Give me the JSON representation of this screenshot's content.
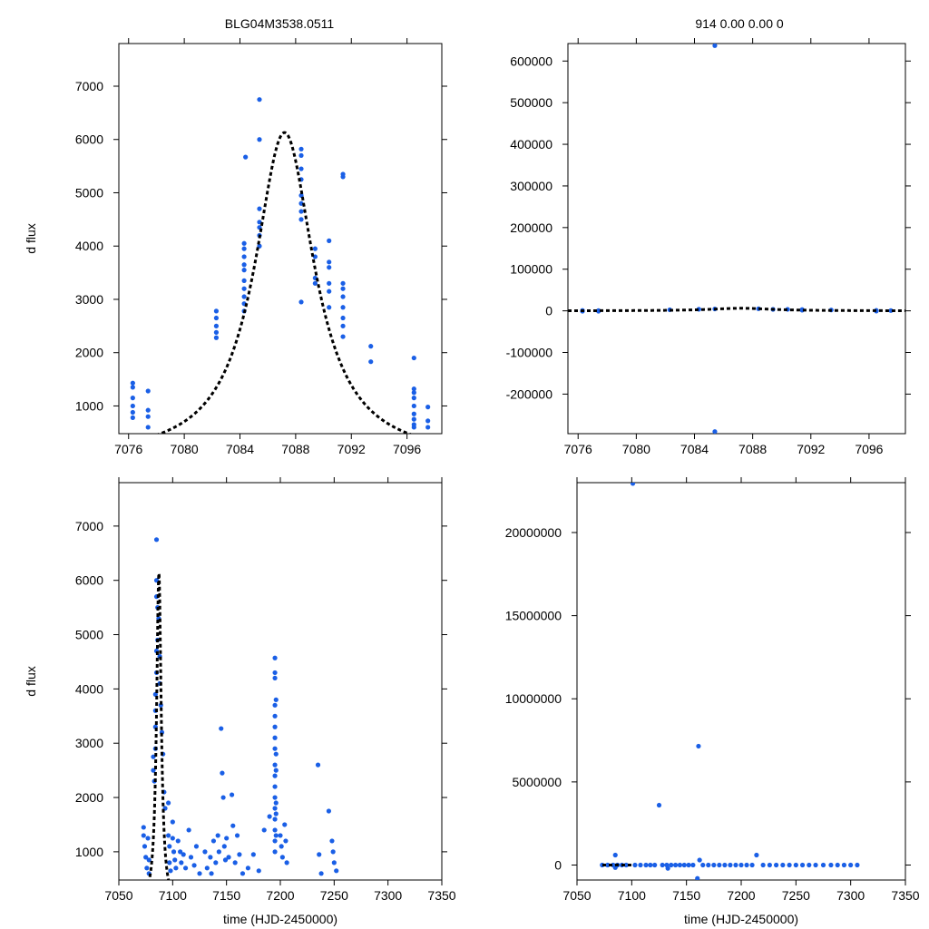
{
  "title_left": "BLG04M3538.0511",
  "title_right": "914  0.00  0.00  0",
  "colors": {
    "points": "#1a5fe6",
    "model": "#000000",
    "axis": "#000000"
  },
  "chart_data": [
    {
      "id": "top-left",
      "type": "scatter",
      "ylabel": "d flux",
      "xlabel": "",
      "xlim": [
        7075.3,
        7098.5
      ],
      "ylim": [
        480,
        7800
      ],
      "xticks": [
        7076,
        7080,
        7084,
        7088,
        7092,
        7096
      ],
      "yticks": [
        1000,
        2000,
        3000,
        4000,
        5000,
        6000,
        7000
      ],
      "points": [
        [
          7076.3,
          1430
        ],
        [
          7076.3,
          1350
        ],
        [
          7076.3,
          1150
        ],
        [
          7076.3,
          1000
        ],
        [
          7076.3,
          880
        ],
        [
          7076.3,
          780
        ],
        [
          7077.4,
          1280
        ],
        [
          7077.4,
          920
        ],
        [
          7077.4,
          800
        ],
        [
          7077.4,
          600
        ],
        [
          7082.3,
          2780
        ],
        [
          7082.3,
          2650
        ],
        [
          7082.3,
          2500
        ],
        [
          7082.3,
          2380
        ],
        [
          7082.3,
          2280
        ],
        [
          7084.3,
          4050
        ],
        [
          7084.3,
          3950
        ],
        [
          7084.3,
          3800
        ],
        [
          7084.3,
          3650
        ],
        [
          7084.3,
          3550
        ],
        [
          7084.3,
          3350
        ],
        [
          7084.3,
          3200
        ],
        [
          7084.3,
          3050
        ],
        [
          7084.3,
          2920
        ],
        [
          7084.3,
          2780
        ],
        [
          7084.4,
          5670
        ],
        [
          7085.4,
          6750
        ],
        [
          7085.4,
          6000
        ],
        [
          7085.4,
          4700
        ],
        [
          7085.4,
          4450
        ],
        [
          7085.4,
          4350
        ],
        [
          7085.4,
          4200
        ],
        [
          7085.4,
          4000
        ],
        [
          7088.4,
          5820
        ],
        [
          7088.4,
          5700
        ],
        [
          7088.4,
          5450
        ],
        [
          7088.4,
          5250
        ],
        [
          7088.4,
          4950
        ],
        [
          7088.4,
          4800
        ],
        [
          7088.4,
          4650
        ],
        [
          7088.4,
          4500
        ],
        [
          7088.4,
          2950
        ],
        [
          7089.4,
          3950
        ],
        [
          7089.4,
          3800
        ],
        [
          7089.4,
          3400
        ],
        [
          7089.4,
          3300
        ],
        [
          7090.4,
          4100
        ],
        [
          7090.4,
          3700
        ],
        [
          7090.4,
          3600
        ],
        [
          7090.4,
          3300
        ],
        [
          7090.4,
          3150
        ],
        [
          7090.4,
          2850
        ],
        [
          7091.4,
          5350
        ],
        [
          7091.4,
          5300
        ],
        [
          7091.4,
          3300
        ],
        [
          7091.4,
          3200
        ],
        [
          7091.4,
          3050
        ],
        [
          7091.4,
          2850
        ],
        [
          7091.4,
          2650
        ],
        [
          7091.4,
          2500
        ],
        [
          7091.4,
          2300
        ],
        [
          7093.4,
          2120
        ],
        [
          7093.4,
          1830
        ],
        [
          7096.5,
          1900
        ],
        [
          7096.5,
          1320
        ],
        [
          7096.5,
          1250
        ],
        [
          7096.5,
          1150
        ],
        [
          7096.5,
          1000
        ],
        [
          7096.5,
          850
        ],
        [
          7096.5,
          750
        ],
        [
          7096.5,
          650
        ],
        [
          7096.5,
          600
        ],
        [
          7097.5,
          980
        ],
        [
          7097.5,
          720
        ],
        [
          7097.5,
          600
        ]
      ],
      "model": {
        "t0": 7087.2,
        "peak": 6130,
        "base": 0,
        "width": 2.6
      }
    },
    {
      "id": "top-right",
      "type": "scatter",
      "ylabel": "",
      "xlabel": "",
      "xlim": [
        7075.3,
        7098.5
      ],
      "ylim": [
        -295000,
        642000
      ],
      "xticks": [
        7076,
        7080,
        7084,
        7088,
        7092,
        7096
      ],
      "yticks": [
        -200000,
        -100000,
        0,
        100000,
        200000,
        300000,
        400000,
        500000,
        600000
      ],
      "points": [
        [
          7076.3,
          800
        ],
        [
          7076.3,
          -1000
        ],
        [
          7077.4,
          500
        ],
        [
          7077.4,
          -800
        ],
        [
          7082.3,
          2500
        ],
        [
          7084.3,
          3800
        ],
        [
          7085.4,
          637000
        ],
        [
          7085.4,
          -290000
        ],
        [
          7085.4,
          4500
        ],
        [
          7088.4,
          5000
        ],
        [
          7089.4,
          3500
        ],
        [
          7090.4,
          3600
        ],
        [
          7091.4,
          3000
        ],
        [
          7091.4,
          1500
        ],
        [
          7093.4,
          2000
        ],
        [
          7096.5,
          1000
        ],
        [
          7096.5,
          -500
        ],
        [
          7097.5,
          700
        ]
      ],
      "model": {
        "t0": 7087.2,
        "peak": 6130,
        "base": 0,
        "width": 2.6
      }
    },
    {
      "id": "bottom-left",
      "type": "scatter",
      "ylabel": "d flux",
      "xlabel": "time (HJD-2450000)",
      "xlim": [
        7050,
        7350
      ],
      "ylim": [
        480,
        7800
      ],
      "xticks": [
        7050,
        7100,
        7150,
        7200,
        7250,
        7300,
        7350
      ],
      "yticks": [
        1000,
        2000,
        3000,
        4000,
        5000,
        6000,
        7000
      ],
      "points": [
        [
          7073,
          1450
        ],
        [
          7073,
          1300
        ],
        [
          7074,
          1100
        ],
        [
          7075,
          900
        ],
        [
          7076,
          700
        ],
        [
          7077,
          1250
        ],
        [
          7078,
          850
        ],
        [
          7078,
          600
        ],
        [
          7082,
          2750
        ],
        [
          7082,
          2500
        ],
        [
          7083,
          2300
        ],
        [
          7084,
          3900
        ],
        [
          7084,
          3600
        ],
        [
          7084,
          3300
        ],
        [
          7084,
          2900
        ],
        [
          7085,
          6750
        ],
        [
          7085,
          6000
        ],
        [
          7085,
          5700
        ],
        [
          7085,
          4700
        ],
        [
          7085,
          4300
        ],
        [
          7086,
          5500
        ],
        [
          7086,
          4900
        ],
        [
          7087,
          5300
        ],
        [
          7088,
          4600
        ],
        [
          7088,
          4100
        ],
        [
          7089,
          3700
        ],
        [
          7090,
          3200
        ],
        [
          7091,
          2800
        ],
        [
          7092,
          2100
        ],
        [
          7093,
          1800
        ],
        [
          7096,
          1900
        ],
        [
          7096,
          1300
        ],
        [
          7097,
          1100
        ],
        [
          7097,
          800
        ],
        [
          7098,
          650
        ],
        [
          7100,
          1550
        ],
        [
          7100,
          1250
        ],
        [
          7101,
          1000
        ],
        [
          7102,
          850
        ],
        [
          7103,
          700
        ],
        [
          7105,
          1200
        ],
        [
          7107,
          1000
        ],
        [
          7108,
          800
        ],
        [
          7110,
          950
        ],
        [
          7112,
          700
        ],
        [
          7115,
          1400
        ],
        [
          7117,
          900
        ],
        [
          7120,
          750
        ],
        [
          7122,
          1100
        ],
        [
          7125,
          600
        ],
        [
          7130,
          1000
        ],
        [
          7132,
          700
        ],
        [
          7135,
          900
        ],
        [
          7136,
          600
        ],
        [
          7138,
          1200
        ],
        [
          7140,
          800
        ],
        [
          7142,
          1300
        ],
        [
          7143,
          1000
        ],
        [
          7145,
          3270
        ],
        [
          7146,
          2450
        ],
        [
          7147,
          2000
        ],
        [
          7148,
          1100
        ],
        [
          7149,
          850
        ],
        [
          7150,
          1250
        ],
        [
          7152,
          900
        ],
        [
          7155,
          2050
        ],
        [
          7156,
          1480
        ],
        [
          7158,
          800
        ],
        [
          7160,
          1300
        ],
        [
          7162,
          950
        ],
        [
          7165,
          600
        ],
        [
          7170,
          700
        ],
        [
          7175,
          950
        ],
        [
          7180,
          650
        ],
        [
          7185,
          1400
        ],
        [
          7190,
          1650
        ],
        [
          7195,
          4570
        ],
        [
          7195,
          4300
        ],
        [
          7195,
          4200
        ],
        [
          7195,
          3700
        ],
        [
          7195,
          3500
        ],
        [
          7195,
          3300
        ],
        [
          7195,
          3100
        ],
        [
          7195,
          2900
        ],
        [
          7195,
          2600
        ],
        [
          7195,
          2400
        ],
        [
          7195,
          2200
        ],
        [
          7195,
          2000
        ],
        [
          7195,
          1800
        ],
        [
          7195,
          1600
        ],
        [
          7195,
          1400
        ],
        [
          7195,
          1200
        ],
        [
          7195,
          1000
        ],
        [
          7196,
          3800
        ],
        [
          7196,
          2800
        ],
        [
          7196,
          2500
        ],
        [
          7196,
          1900
        ],
        [
          7196,
          1700
        ],
        [
          7196,
          1300
        ],
        [
          7200,
          1300
        ],
        [
          7201,
          1100
        ],
        [
          7202,
          900
        ],
        [
          7204,
          1500
        ],
        [
          7205,
          1200
        ],
        [
          7206,
          800
        ],
        [
          7235,
          2600
        ],
        [
          7236,
          950
        ],
        [
          7238,
          600
        ],
        [
          7245,
          1750
        ],
        [
          7248,
          1200
        ],
        [
          7249,
          1000
        ],
        [
          7250,
          800
        ],
        [
          7252,
          650
        ]
      ],
      "model": {
        "t0": 7087.2,
        "peak": 6130,
        "base": 0,
        "width": 2.6
      }
    },
    {
      "id": "bottom-right",
      "type": "scatter",
      "ylabel": "",
      "xlabel": "time (HJD-2450000)",
      "xlim": [
        7050,
        7350
      ],
      "ylim": [
        -900000,
        23000000
      ],
      "xticks": [
        7050,
        7100,
        7150,
        7200,
        7250,
        7300,
        7350
      ],
      "yticks": [
        0,
        5000000,
        10000000,
        15000000,
        20000000
      ],
      "points": [
        [
          7073,
          0
        ],
        [
          7078,
          0
        ],
        [
          7083,
          0
        ],
        [
          7087,
          0
        ],
        [
          7091,
          0
        ],
        [
          7095,
          0
        ],
        [
          7101,
          22950000
        ],
        [
          7103,
          0
        ],
        [
          7108,
          0
        ],
        [
          7113,
          0
        ],
        [
          7117,
          0
        ],
        [
          7121,
          0
        ],
        [
          7125,
          3600000
        ],
        [
          7128,
          0
        ],
        [
          7132,
          0
        ],
        [
          7136,
          0
        ],
        [
          7140,
          0
        ],
        [
          7144,
          0
        ],
        [
          7148,
          0
        ],
        [
          7152,
          0
        ],
        [
          7156,
          0
        ],
        [
          7160,
          -800000
        ],
        [
          7161,
          7150000
        ],
        [
          7162,
          300000
        ],
        [
          7165,
          0
        ],
        [
          7170,
          0
        ],
        [
          7175,
          0
        ],
        [
          7180,
          0
        ],
        [
          7185,
          0
        ],
        [
          7190,
          0
        ],
        [
          7195,
          0
        ],
        [
          7200,
          0
        ],
        [
          7205,
          0
        ],
        [
          7210,
          0
        ],
        [
          7214,
          600000
        ],
        [
          7220,
          0
        ],
        [
          7226,
          0
        ],
        [
          7232,
          0
        ],
        [
          7238,
          0
        ],
        [
          7244,
          0
        ],
        [
          7250,
          0
        ],
        [
          7256,
          0
        ],
        [
          7262,
          0
        ],
        [
          7268,
          0
        ],
        [
          7275,
          0
        ],
        [
          7282,
          0
        ],
        [
          7288,
          0
        ],
        [
          7294,
          0
        ],
        [
          7300,
          0
        ],
        [
          7306,
          0
        ],
        [
          7085,
          -150000
        ],
        [
          7085,
          600000
        ],
        [
          7133,
          -200000
        ]
      ],
      "model": {
        "t0": 7087.2,
        "peak": 6130,
        "base": 0,
        "width": 2.6
      }
    }
  ]
}
